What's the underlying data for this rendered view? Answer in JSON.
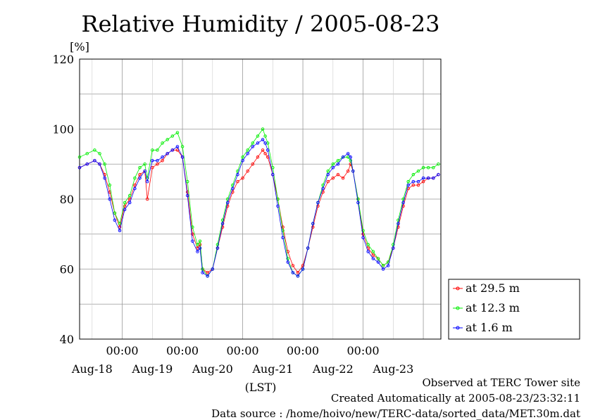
{
  "chart_data": {
    "type": "line",
    "title": "Relative Humidity / 2005-08-23",
    "ylabel": "[%]",
    "xlabel": "(LST)",
    "ylim": [
      40,
      120
    ],
    "yticks": [
      "40",
      "60",
      "80",
      "100",
      "120"
    ],
    "xlim_hours": [
      -17,
      127
    ],
    "time_tick_label": "00:00",
    "date_labels": [
      "Aug-18",
      "Aug-19",
      "Aug-20",
      "Aug-21",
      "Aug-22",
      "Aug-23"
    ],
    "grid": true,
    "legend_position": "right",
    "series": [
      {
        "name": "at 29.5 m",
        "color": "#ff0000",
        "points": [
          [
            -17,
            89
          ],
          [
            -14,
            90
          ],
          [
            -11,
            91
          ],
          [
            -9,
            90
          ],
          [
            -7,
            87
          ],
          [
            -5,
            82
          ],
          [
            -3,
            76
          ],
          [
            -1,
            72
          ],
          [
            1,
            78
          ],
          [
            3,
            80
          ],
          [
            5,
            84
          ],
          [
            7,
            87
          ],
          [
            9,
            88
          ],
          [
            10,
            80
          ],
          [
            12,
            89
          ],
          [
            14,
            90
          ],
          [
            16,
            91
          ],
          [
            18,
            93
          ],
          [
            20,
            94
          ],
          [
            22,
            94
          ],
          [
            24,
            92
          ],
          [
            26,
            82
          ],
          [
            28,
            70
          ],
          [
            30,
            66
          ],
          [
            31,
            67
          ],
          [
            32,
            60
          ],
          [
            34,
            59
          ],
          [
            36,
            60
          ],
          [
            38,
            66
          ],
          [
            40,
            72
          ],
          [
            42,
            78
          ],
          [
            44,
            82
          ],
          [
            46,
            85
          ],
          [
            48,
            86
          ],
          [
            50,
            88
          ],
          [
            52,
            90
          ],
          [
            54,
            92
          ],
          [
            56,
            94
          ],
          [
            57,
            93
          ],
          [
            58,
            92
          ],
          [
            60,
            87
          ],
          [
            62,
            80
          ],
          [
            64,
            72
          ],
          [
            66,
            65
          ],
          [
            68,
            61
          ],
          [
            70,
            59
          ],
          [
            72,
            61
          ],
          [
            74,
            66
          ],
          [
            76,
            72
          ],
          [
            78,
            78
          ],
          [
            80,
            82
          ],
          [
            82,
            85
          ],
          [
            84,
            86
          ],
          [
            86,
            87
          ],
          [
            88,
            86
          ],
          [
            90,
            88
          ],
          [
            91,
            90
          ],
          [
            92,
            88
          ],
          [
            94,
            80
          ],
          [
            96,
            70
          ],
          [
            98,
            66
          ],
          [
            100,
            64
          ],
          [
            102,
            63
          ],
          [
            104,
            61
          ],
          [
            106,
            62
          ],
          [
            108,
            66
          ],
          [
            110,
            72
          ],
          [
            112,
            78
          ],
          [
            114,
            83
          ],
          [
            116,
            84
          ],
          [
            118,
            84
          ],
          [
            120,
            85
          ],
          [
            122,
            86
          ],
          [
            124,
            86
          ],
          [
            126,
            87
          ]
        ]
      },
      {
        "name": "at 12.3 m",
        "color": "#00ee00",
        "points": [
          [
            -17,
            92
          ],
          [
            -14,
            93
          ],
          [
            -11,
            94
          ],
          [
            -9,
            93
          ],
          [
            -7,
            90
          ],
          [
            -5,
            84
          ],
          [
            -3,
            76
          ],
          [
            -1,
            73
          ],
          [
            1,
            79
          ],
          [
            3,
            81
          ],
          [
            5,
            86
          ],
          [
            7,
            89
          ],
          [
            9,
            90
          ],
          [
            10,
            86
          ],
          [
            12,
            94
          ],
          [
            14,
            94
          ],
          [
            16,
            96
          ],
          [
            18,
            97
          ],
          [
            20,
            98
          ],
          [
            22,
            99
          ],
          [
            24,
            95
          ],
          [
            26,
            85
          ],
          [
            28,
            72
          ],
          [
            30,
            67
          ],
          [
            31,
            68
          ],
          [
            32,
            60
          ],
          [
            34,
            58
          ],
          [
            36,
            60
          ],
          [
            38,
            67
          ],
          [
            40,
            74
          ],
          [
            42,
            80
          ],
          [
            44,
            84
          ],
          [
            46,
            88
          ],
          [
            48,
            92
          ],
          [
            50,
            94
          ],
          [
            52,
            96
          ],
          [
            54,
            98
          ],
          [
            56,
            100
          ],
          [
            57,
            98
          ],
          [
            58,
            96
          ],
          [
            60,
            89
          ],
          [
            62,
            80
          ],
          [
            64,
            71
          ],
          [
            66,
            63
          ],
          [
            68,
            59
          ],
          [
            70,
            58
          ],
          [
            72,
            60
          ],
          [
            74,
            66
          ],
          [
            76,
            73
          ],
          [
            78,
            79
          ],
          [
            80,
            84
          ],
          [
            82,
            88
          ],
          [
            84,
            90
          ],
          [
            86,
            91
          ],
          [
            88,
            92
          ],
          [
            90,
            92
          ],
          [
            91,
            91
          ],
          [
            92,
            88
          ],
          [
            94,
            80
          ],
          [
            96,
            71
          ],
          [
            98,
            67
          ],
          [
            100,
            65
          ],
          [
            102,
            63
          ],
          [
            104,
            61
          ],
          [
            106,
            62
          ],
          [
            108,
            67
          ],
          [
            110,
            74
          ],
          [
            112,
            80
          ],
          [
            114,
            85
          ],
          [
            116,
            87
          ],
          [
            118,
            88
          ],
          [
            120,
            89
          ],
          [
            122,
            89
          ],
          [
            124,
            89
          ],
          [
            126,
            90
          ]
        ]
      },
      {
        "name": "at 1.6 m",
        "color": "#0000ff",
        "points": [
          [
            -17,
            89
          ],
          [
            -14,
            90
          ],
          [
            -11,
            91
          ],
          [
            -9,
            90
          ],
          [
            -7,
            86
          ],
          [
            -5,
            80
          ],
          [
            -3,
            74
          ],
          [
            -1,
            71
          ],
          [
            1,
            77
          ],
          [
            3,
            79
          ],
          [
            5,
            83
          ],
          [
            7,
            86
          ],
          [
            9,
            88
          ],
          [
            10,
            85
          ],
          [
            12,
            91
          ],
          [
            14,
            91
          ],
          [
            16,
            92
          ],
          [
            18,
            93
          ],
          [
            20,
            94
          ],
          [
            22,
            95
          ],
          [
            24,
            92
          ],
          [
            26,
            81
          ],
          [
            28,
            68
          ],
          [
            30,
            65
          ],
          [
            31,
            66
          ],
          [
            32,
            59
          ],
          [
            34,
            58
          ],
          [
            36,
            60
          ],
          [
            38,
            66
          ],
          [
            40,
            73
          ],
          [
            42,
            79
          ],
          [
            44,
            83
          ],
          [
            46,
            87
          ],
          [
            48,
            91
          ],
          [
            50,
            93
          ],
          [
            52,
            95
          ],
          [
            54,
            96
          ],
          [
            56,
            97
          ],
          [
            57,
            96
          ],
          [
            58,
            94
          ],
          [
            60,
            87
          ],
          [
            62,
            78
          ],
          [
            64,
            69
          ],
          [
            66,
            62
          ],
          [
            68,
            59
          ],
          [
            70,
            58
          ],
          [
            72,
            60
          ],
          [
            74,
            66
          ],
          [
            76,
            73
          ],
          [
            78,
            79
          ],
          [
            80,
            83
          ],
          [
            82,
            87
          ],
          [
            84,
            89
          ],
          [
            86,
            90
          ],
          [
            88,
            92
          ],
          [
            90,
            93
          ],
          [
            91,
            92
          ],
          [
            92,
            88
          ],
          [
            94,
            79
          ],
          [
            96,
            69
          ],
          [
            98,
            65
          ],
          [
            100,
            63
          ],
          [
            102,
            62
          ],
          [
            104,
            60
          ],
          [
            106,
            61
          ],
          [
            108,
            66
          ],
          [
            110,
            73
          ],
          [
            112,
            79
          ],
          [
            114,
            84
          ],
          [
            116,
            85
          ],
          [
            118,
            85
          ],
          [
            120,
            86
          ],
          [
            122,
            86
          ],
          [
            124,
            86
          ],
          [
            126,
            87
          ]
        ]
      }
    ]
  },
  "footer": {
    "observed": "Observed at TERC Tower site",
    "created": "Created Automatically at 2005-08-23/23:32:11",
    "source": "Data source : /home/hoivo/new/TERC-data/sorted_data/MET.30m.dat"
  }
}
